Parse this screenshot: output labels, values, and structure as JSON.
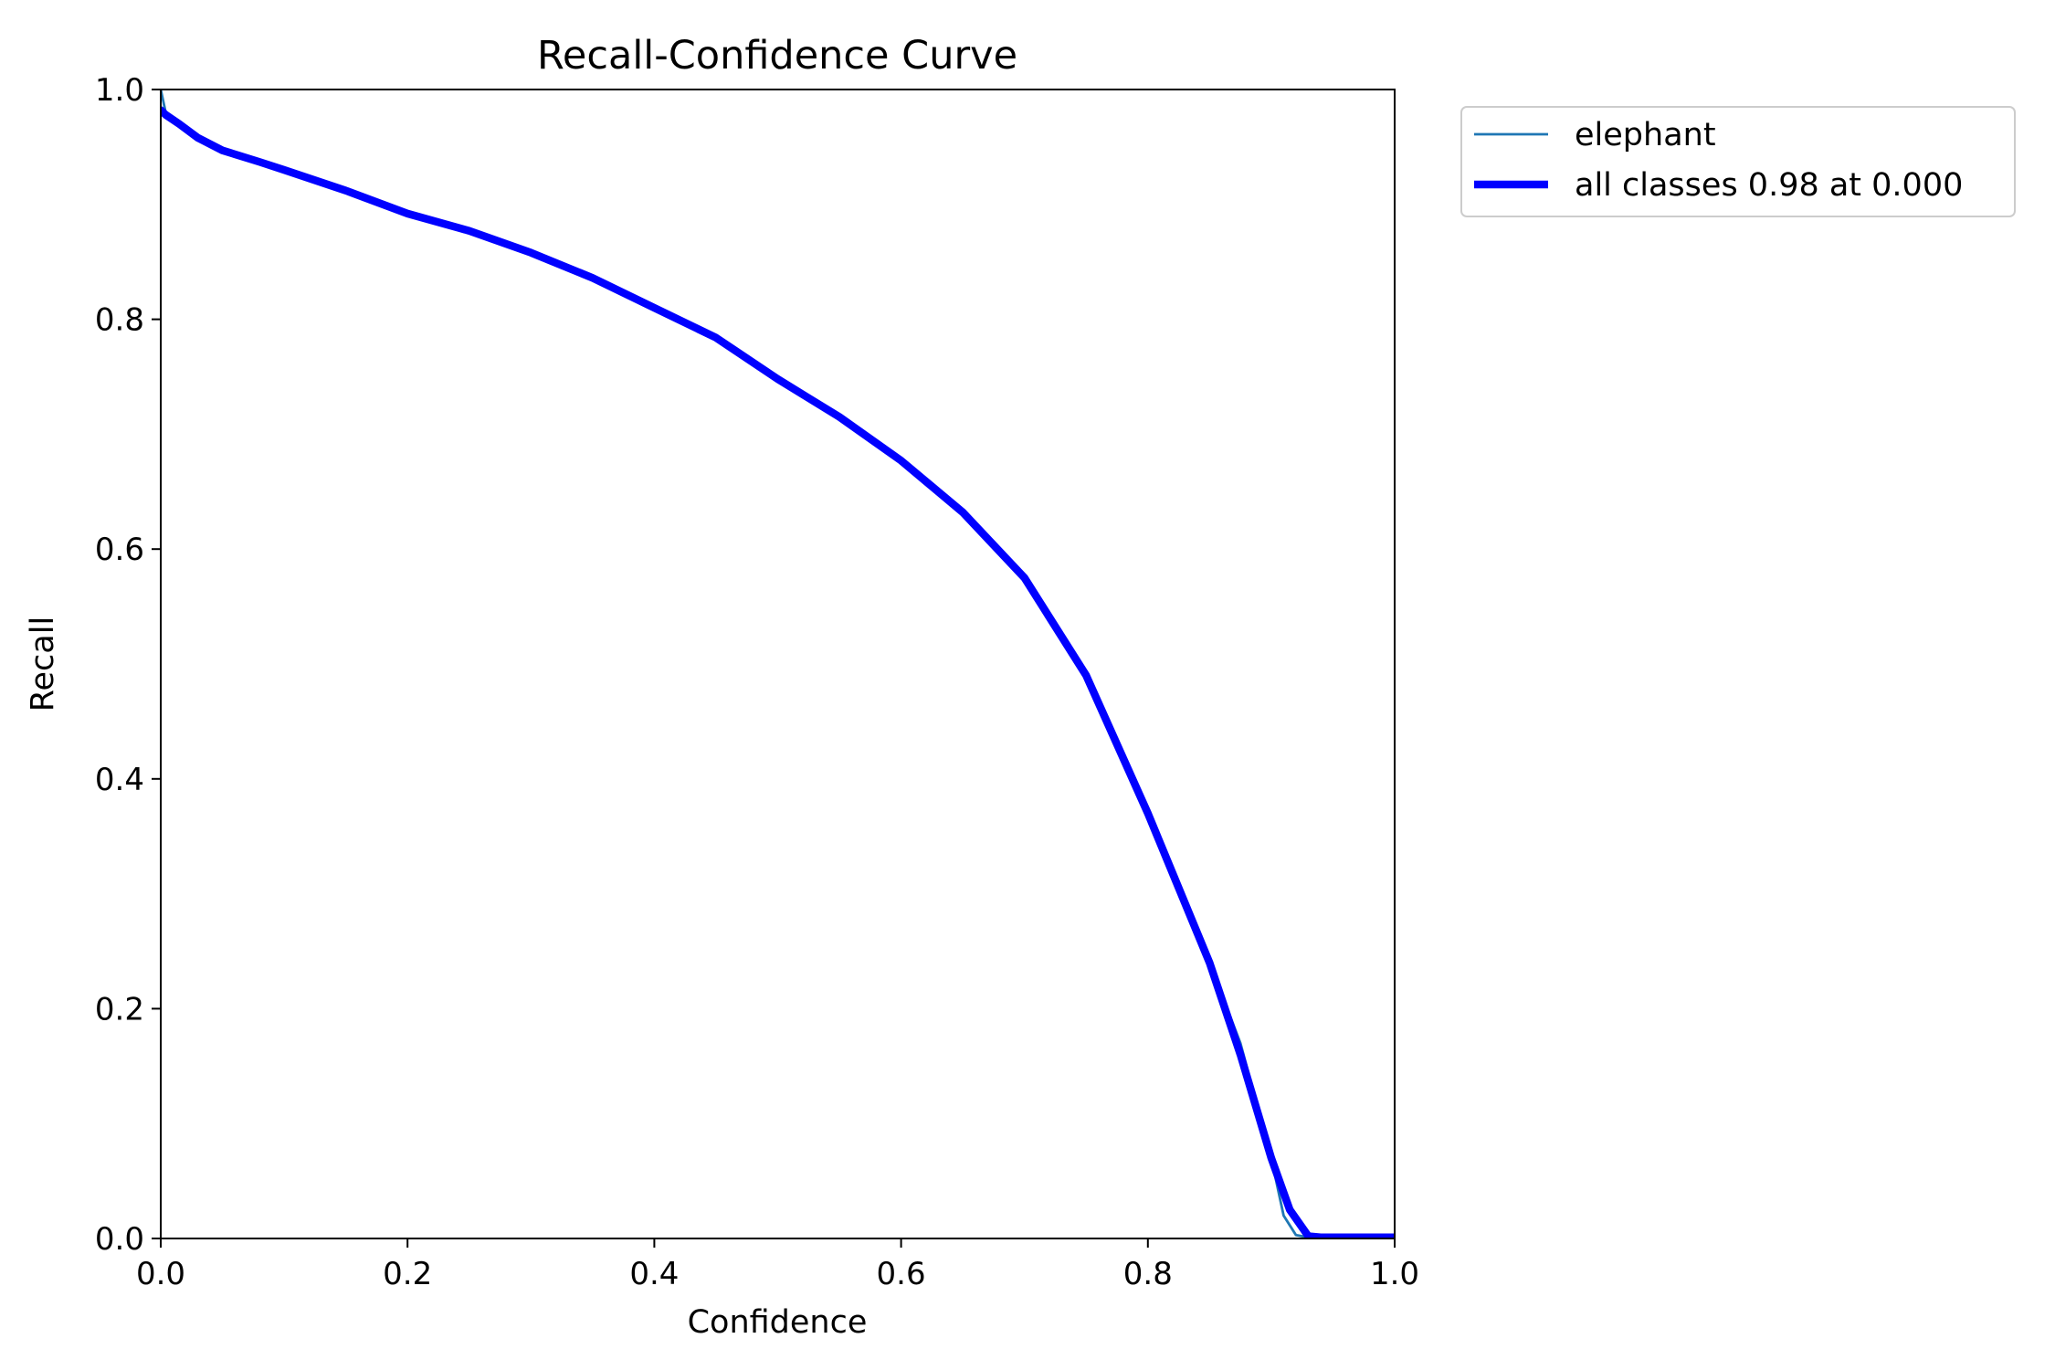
{
  "chart_data": {
    "type": "line",
    "title": "Recall-Confidence Curve",
    "xlabel": "Confidence",
    "ylabel": "Recall",
    "xlim": [
      0,
      1
    ],
    "ylim": [
      0,
      1
    ],
    "x_ticks": [
      "0.0",
      "0.2",
      "0.4",
      "0.6",
      "0.8",
      "1.0"
    ],
    "y_ticks": [
      "0.0",
      "0.2",
      "0.4",
      "0.6",
      "0.8",
      "1.0"
    ],
    "grid": false,
    "legend_position": "outside-top-right",
    "series": [
      {
        "name": "elephant",
        "color": "#1f77b4",
        "line_width": "thin",
        "points": [
          [
            0.0,
            1.0
          ],
          [
            0.004,
            0.98
          ],
          [
            0.015,
            0.972
          ],
          [
            0.03,
            0.958
          ],
          [
            0.05,
            0.948
          ],
          [
            0.08,
            0.937
          ],
          [
            0.1,
            0.93
          ],
          [
            0.15,
            0.912
          ],
          [
            0.2,
            0.892
          ],
          [
            0.25,
            0.877
          ],
          [
            0.3,
            0.858
          ],
          [
            0.35,
            0.836
          ],
          [
            0.4,
            0.81
          ],
          [
            0.45,
            0.784
          ],
          [
            0.5,
            0.748
          ],
          [
            0.55,
            0.715
          ],
          [
            0.6,
            0.677
          ],
          [
            0.65,
            0.632
          ],
          [
            0.7,
            0.575
          ],
          [
            0.75,
            0.49
          ],
          [
            0.8,
            0.37
          ],
          [
            0.85,
            0.24
          ],
          [
            0.875,
            0.17
          ],
          [
            0.9,
            0.07
          ],
          [
            0.91,
            0.02
          ],
          [
            0.92,
            0.003
          ],
          [
            0.93,
            0.001
          ],
          [
            1.0,
            0.001
          ]
        ]
      },
      {
        "name": "all classes 0.98 at 0.000",
        "color": "#0000ff",
        "line_width": "thick",
        "points": [
          [
            0.0,
            0.982
          ],
          [
            0.004,
            0.978
          ],
          [
            0.015,
            0.97
          ],
          [
            0.03,
            0.958
          ],
          [
            0.05,
            0.947
          ],
          [
            0.08,
            0.937
          ],
          [
            0.1,
            0.93
          ],
          [
            0.15,
            0.912
          ],
          [
            0.2,
            0.892
          ],
          [
            0.25,
            0.877
          ],
          [
            0.3,
            0.858
          ],
          [
            0.35,
            0.836
          ],
          [
            0.4,
            0.81
          ],
          [
            0.45,
            0.784
          ],
          [
            0.5,
            0.748
          ],
          [
            0.55,
            0.715
          ],
          [
            0.6,
            0.677
          ],
          [
            0.65,
            0.632
          ],
          [
            0.7,
            0.575
          ],
          [
            0.75,
            0.49
          ],
          [
            0.8,
            0.37
          ],
          [
            0.85,
            0.24
          ],
          [
            0.875,
            0.16
          ],
          [
            0.9,
            0.07
          ],
          [
            0.915,
            0.025
          ],
          [
            0.93,
            0.002
          ],
          [
            0.94,
            0.001
          ],
          [
            1.0,
            0.001
          ]
        ]
      }
    ]
  }
}
